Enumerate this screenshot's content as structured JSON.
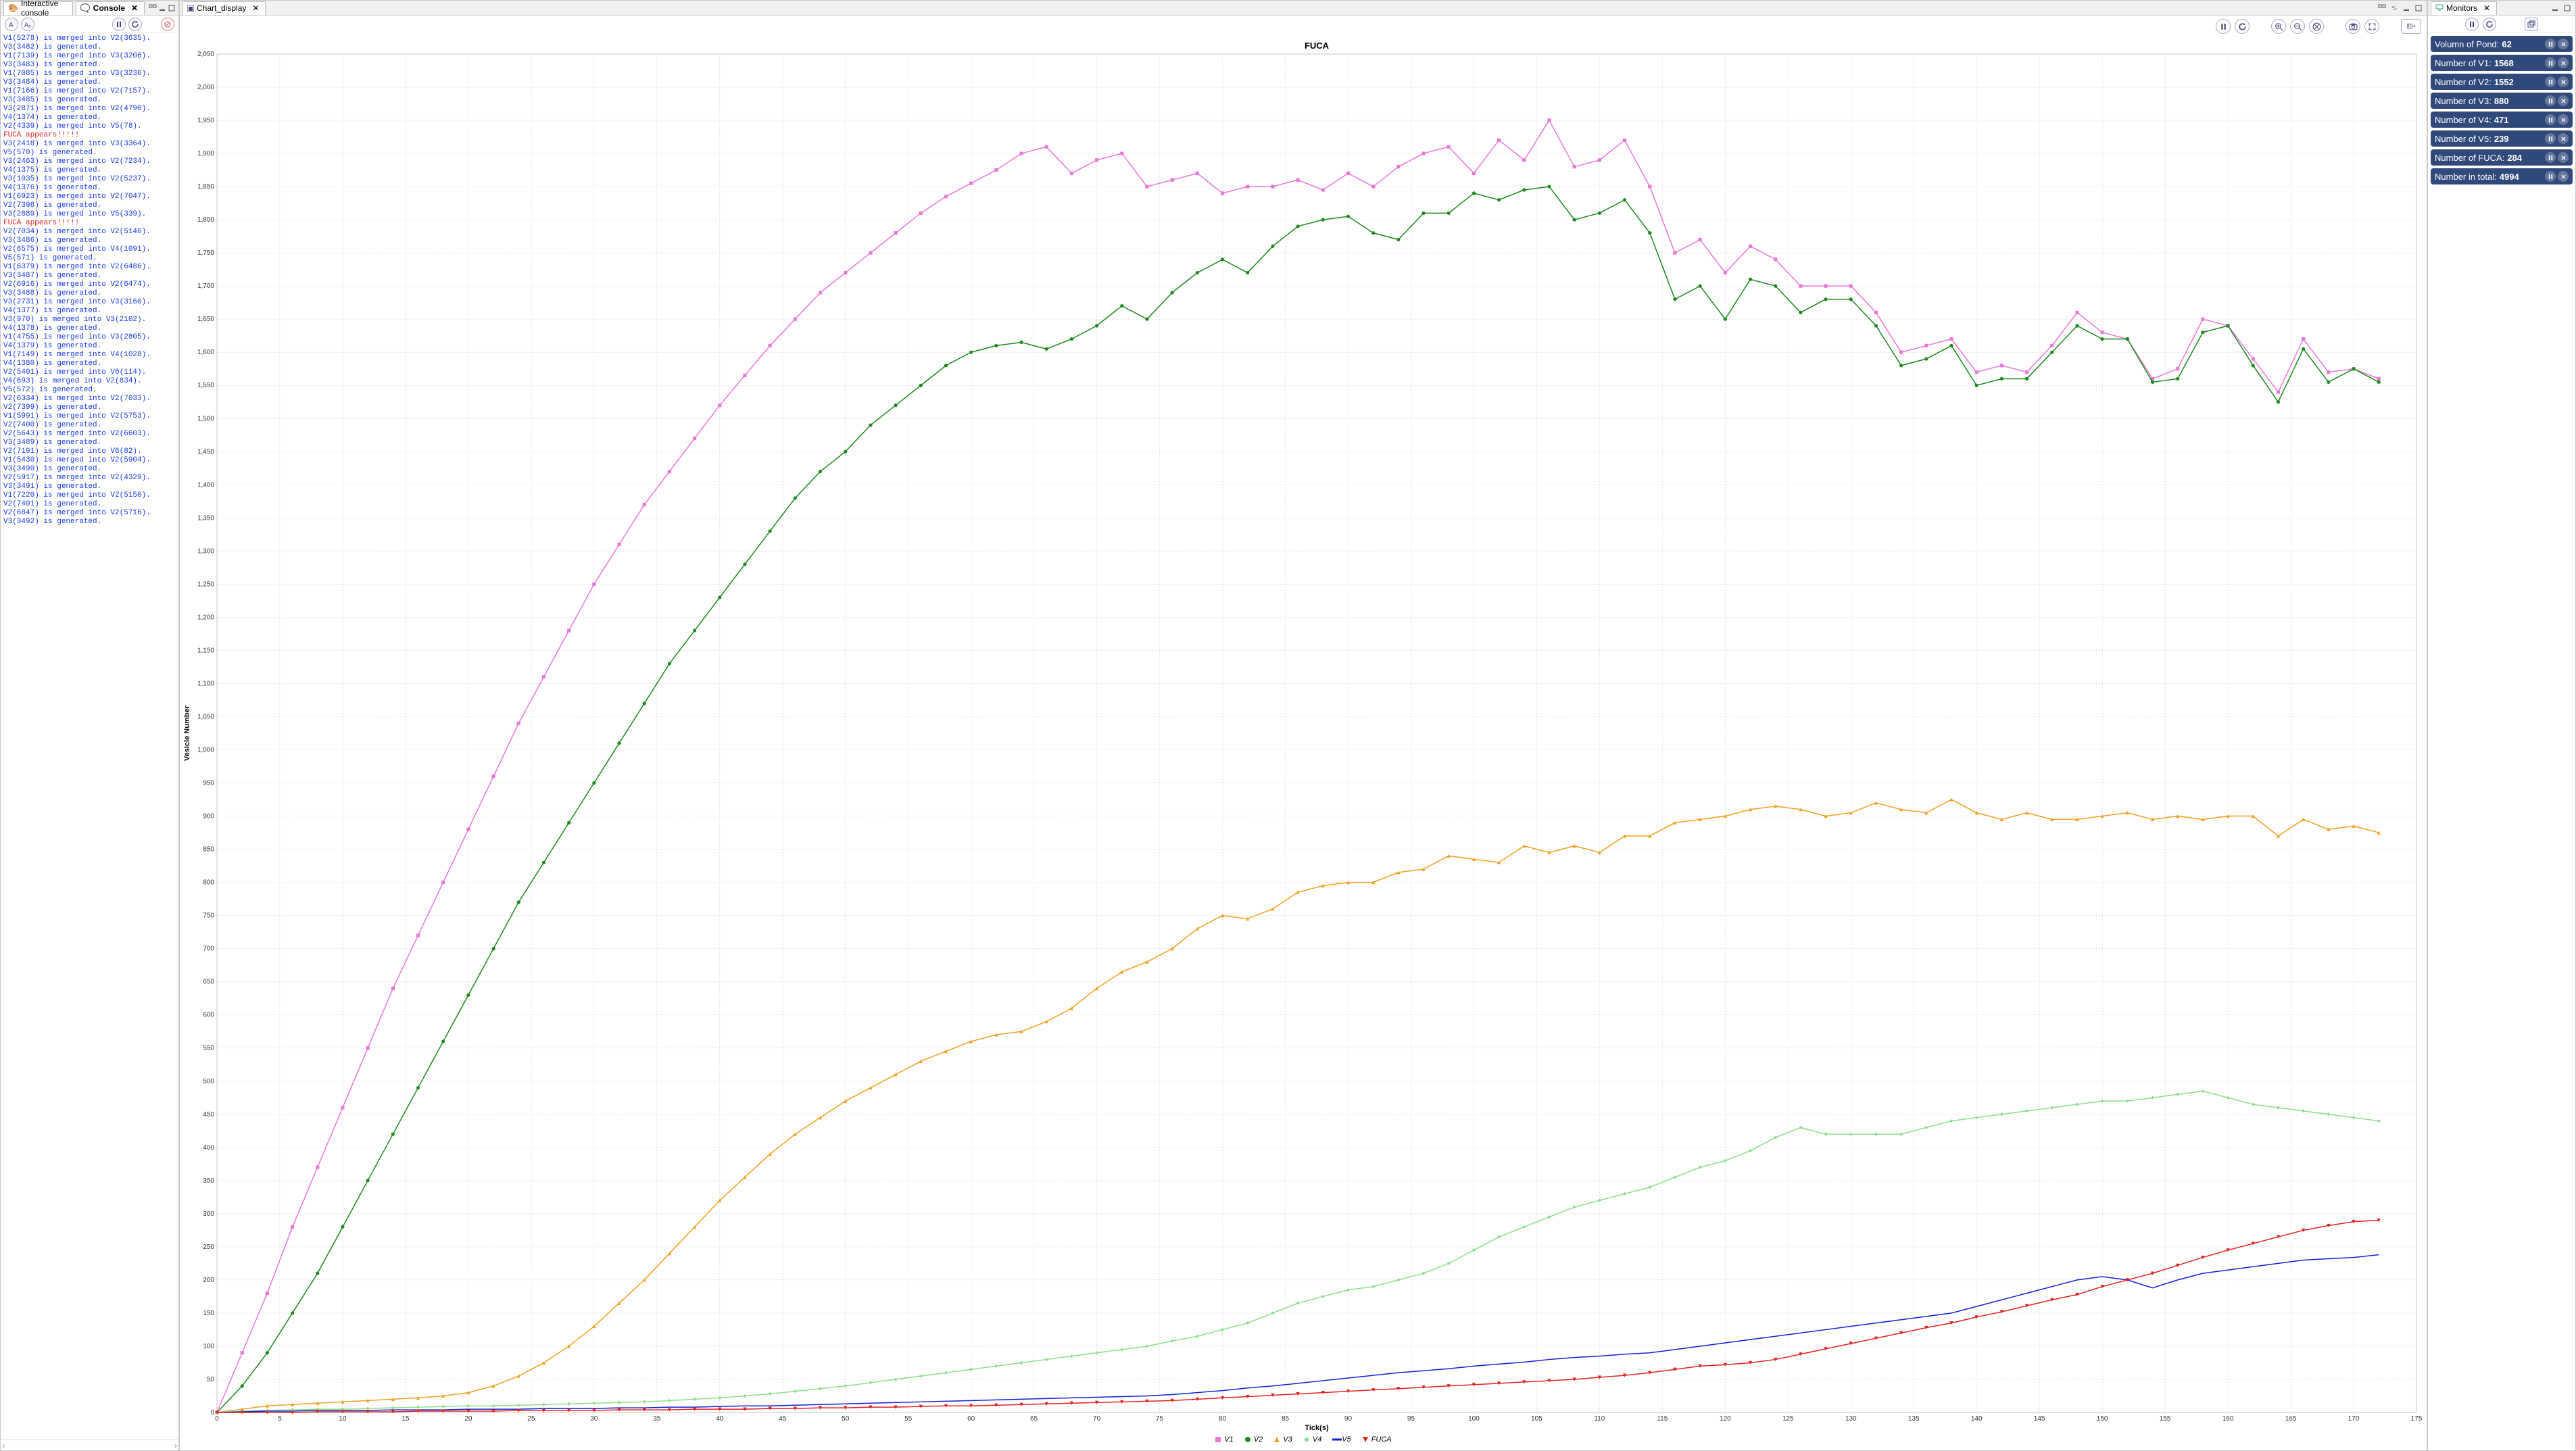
{
  "panels": {
    "console": {
      "tabs": [
        "Interactive console",
        "Console"
      ],
      "active_tab": 1,
      "log": [
        {
          "text": "V1(5278) is merged into V2(3635).",
          "alert": false
        },
        {
          "text": "V3(3482) is generated.",
          "alert": false
        },
        {
          "text": "V1(7139) is merged into V3(3206).",
          "alert": false
        },
        {
          "text": "V3(3483) is generated.",
          "alert": false
        },
        {
          "text": "V1(7085) is merged into V3(3236).",
          "alert": false
        },
        {
          "text": "V3(3484) is generated.",
          "alert": false
        },
        {
          "text": "V1(7166) is merged into V2(7157).",
          "alert": false
        },
        {
          "text": "V3(3485) is generated.",
          "alert": false
        },
        {
          "text": "V3(2871) is merged into V2(4790).",
          "alert": false
        },
        {
          "text": "V4(1374) is generated.",
          "alert": false
        },
        {
          "text": "V2(4339) is merged into V5(78).",
          "alert": false
        },
        {
          "text": "FUCA appears!!!!!",
          "alert": true
        },
        {
          "text": "V3(2418) is merged into V3(3364).",
          "alert": false
        },
        {
          "text": "V5(570) is generated.",
          "alert": false
        },
        {
          "text": "V3(2463) is merged into V2(7234).",
          "alert": false
        },
        {
          "text": "V4(1375) is generated.",
          "alert": false
        },
        {
          "text": "V3(1035) is merged into V2(5237).",
          "alert": false
        },
        {
          "text": "V4(1376) is generated.",
          "alert": false
        },
        {
          "text": "V1(6923) is merged into V2(7047).",
          "alert": false
        },
        {
          "text": "V2(7398) is generated.",
          "alert": false
        },
        {
          "text": "V3(2889) is merged into V5(339).",
          "alert": false
        },
        {
          "text": "FUCA appears!!!!!",
          "alert": true
        },
        {
          "text": "V2(7034) is merged into V2(5146).",
          "alert": false
        },
        {
          "text": "V3(3486) is generated.",
          "alert": false
        },
        {
          "text": "V2(6575) is merged into V4(1091).",
          "alert": false
        },
        {
          "text": "V5(571) is generated.",
          "alert": false
        },
        {
          "text": "V1(6379) is merged into V2(6486).",
          "alert": false
        },
        {
          "text": "V3(3487) is generated.",
          "alert": false
        },
        {
          "text": "V2(6916) is merged into V2(6474).",
          "alert": false
        },
        {
          "text": "V3(3488) is generated.",
          "alert": false
        },
        {
          "text": "V3(2731) is merged into V3(3160).",
          "alert": false
        },
        {
          "text": "V4(1377) is generated.",
          "alert": false
        },
        {
          "text": "V3(970) is merged into V3(2102).",
          "alert": false
        },
        {
          "text": "V4(1378) is generated.",
          "alert": false
        },
        {
          "text": "V1(4755) is merged into V3(2805).",
          "alert": false
        },
        {
          "text": "V4(1379) is generated.",
          "alert": false
        },
        {
          "text": "V1(7149) is merged into V4(1028).",
          "alert": false
        },
        {
          "text": "V4(1380) is generated.",
          "alert": false
        },
        {
          "text": "V2(5401) is merged into V6(114).",
          "alert": false
        },
        {
          "text": "V4(693) is merged into V2(834).",
          "alert": false
        },
        {
          "text": "V5(572) is generated.",
          "alert": false
        },
        {
          "text": "V2(6334) is merged into V2(7033).",
          "alert": false
        },
        {
          "text": "V2(7399) is generated.",
          "alert": false
        },
        {
          "text": "V1(5991) is merged into V2(5753).",
          "alert": false
        },
        {
          "text": "V2(7400) is generated.",
          "alert": false
        },
        {
          "text": "V2(5643) is merged into V2(6603).",
          "alert": false
        },
        {
          "text": "V3(3489) is generated.",
          "alert": false
        },
        {
          "text": "V2(7191) is merged into V6(82).",
          "alert": false
        },
        {
          "text": "V1(5430) is merged into V2(5904).",
          "alert": false
        },
        {
          "text": "V3(3490) is generated.",
          "alert": false
        },
        {
          "text": "V2(5917) is merged into V2(4329).",
          "alert": false
        },
        {
          "text": "V3(3491) is generated.",
          "alert": false
        },
        {
          "text": "V1(7220) is merged into V2(5150).",
          "alert": false
        },
        {
          "text": "V2(7401) is generated.",
          "alert": false
        },
        {
          "text": "V2(6847) is merged into V2(5716).",
          "alert": false
        },
        {
          "text": "V3(3492) is generated.",
          "alert": false
        }
      ]
    },
    "chart": {
      "tab": "Chart_display",
      "title": "FUCA",
      "xlabel": "Tick(s)",
      "ylabel": "Vesicle Number",
      "xlim": [
        0,
        175
      ],
      "ylim": [
        0,
        2050
      ],
      "xtick_step": 5,
      "ytick_step": 50,
      "grid_color": "#cccccc",
      "background_color": "#ffffff",
      "series": [
        {
          "name": "V1",
          "color": "#e878d8",
          "marker": "square",
          "data": [
            0,
            90,
            180,
            280,
            370,
            460,
            550,
            640,
            720,
            800,
            880,
            960,
            1040,
            1110,
            1180,
            1250,
            1310,
            1370,
            1420,
            1470,
            1520,
            1565,
            1610,
            1650,
            1690,
            1720,
            1750,
            1780,
            1810,
            1835,
            1855,
            1875,
            1900,
            1910,
            1870,
            1890,
            1900,
            1850,
            1860,
            1870,
            1840,
            1850,
            1850,
            1860,
            1845,
            1870,
            1850,
            1880,
            1900,
            1910,
            1870,
            1920,
            1890,
            1950,
            1880,
            1890,
            1920,
            1850,
            1750,
            1770,
            1720,
            1760,
            1740,
            1700,
            1700,
            1700,
            1660,
            1600,
            1610,
            1620,
            1570,
            1580,
            1570,
            1610,
            1660,
            1630,
            1620,
            1560,
            1575,
            1650,
            1640,
            1590,
            1540,
            1620,
            1570,
            1575,
            1560
          ]
        },
        {
          "name": "V2",
          "color": "#1a8a1a",
          "marker": "circle",
          "data": [
            0,
            40,
            90,
            150,
            210,
            280,
            350,
            420,
            490,
            560,
            630,
            700,
            770,
            830,
            890,
            950,
            1010,
            1070,
            1130,
            1180,
            1230,
            1280,
            1330,
            1380,
            1420,
            1450,
            1490,
            1520,
            1550,
            1580,
            1600,
            1610,
            1615,
            1605,
            1620,
            1640,
            1670,
            1650,
            1690,
            1720,
            1740,
            1720,
            1760,
            1790,
            1800,
            1805,
            1780,
            1770,
            1810,
            1810,
            1840,
            1830,
            1845,
            1850,
            1800,
            1810,
            1830,
            1780,
            1680,
            1700,
            1650,
            1710,
            1700,
            1660,
            1680,
            1680,
            1640,
            1580,
            1590,
            1610,
            1550,
            1560,
            1560,
            1600,
            1640,
            1620,
            1620,
            1555,
            1560,
            1630,
            1640,
            1580,
            1525,
            1605,
            1555,
            1575,
            1555
          ]
        },
        {
          "name": "V3",
          "color": "#f0a020",
          "marker": "triangle",
          "data": [
            0,
            5,
            10,
            12,
            14,
            16,
            18,
            20,
            22,
            25,
            30,
            40,
            55,
            75,
            100,
            130,
            165,
            200,
            240,
            280,
            320,
            355,
            390,
            420,
            445,
            470,
            490,
            510,
            530,
            545,
            560,
            570,
            575,
            590,
            610,
            640,
            665,
            680,
            700,
            730,
            750,
            745,
            760,
            785,
            795,
            800,
            800,
            815,
            820,
            840,
            835,
            830,
            855,
            845,
            855,
            845,
            870,
            870,
            890,
            895,
            900,
            910,
            915,
            910,
            900,
            905,
            920,
            910,
            905,
            925,
            905,
            895,
            905,
            895,
            895,
            900,
            905,
            895,
            900,
            895,
            900,
            900,
            870,
            895,
            880,
            885,
            875
          ]
        },
        {
          "name": "V4",
          "color": "#8ae08a",
          "marker": "diamond",
          "data": [
            0,
            2,
            3,
            4,
            5,
            5,
            6,
            7,
            8,
            9,
            10,
            10,
            11,
            12,
            13,
            14,
            15,
            16,
            18,
            20,
            22,
            25,
            28,
            32,
            36,
            40,
            45,
            50,
            55,
            60,
            65,
            70,
            75,
            80,
            85,
            90,
            95,
            100,
            108,
            115,
            125,
            135,
            150,
            165,
            175,
            185,
            190,
            200,
            210,
            225,
            245,
            265,
            280,
            295,
            310,
            320,
            330,
            340,
            355,
            370,
            380,
            395,
            415,
            430,
            420,
            420,
            420,
            420,
            430,
            440,
            445,
            450,
            455,
            460,
            465,
            470,
            470,
            475,
            480,
            485,
            475,
            465,
            460,
            455,
            450,
            445,
            440
          ]
        },
        {
          "name": "V5",
          "color": "#1020d0",
          "marker": "line",
          "data": [
            0,
            1,
            2,
            2,
            3,
            3,
            3,
            4,
            4,
            4,
            5,
            5,
            5,
            6,
            6,
            6,
            7,
            7,
            8,
            8,
            9,
            10,
            10,
            11,
            12,
            13,
            14,
            15,
            16,
            17,
            18,
            19,
            20,
            21,
            22,
            23,
            24,
            25,
            27,
            30,
            33,
            37,
            40,
            44,
            48,
            52,
            56,
            60,
            63,
            66,
            70,
            73,
            76,
            80,
            83,
            85,
            88,
            90,
            95,
            100,
            105,
            110,
            115,
            120,
            125,
            130,
            135,
            140,
            145,
            150,
            160,
            170,
            180,
            190,
            200,
            205,
            200,
            188,
            200,
            210,
            215,
            220,
            225,
            230,
            232,
            234,
            238
          ]
        },
        {
          "name": "FUCA",
          "color": "#e02020",
          "marker": "triangle-down",
          "data": [
            0,
            0,
            0,
            0,
            1,
            1,
            1,
            1,
            2,
            2,
            2,
            2,
            3,
            3,
            3,
            3,
            4,
            4,
            4,
            5,
            5,
            5,
            6,
            6,
            7,
            7,
            8,
            8,
            9,
            10,
            10,
            11,
            12,
            13,
            14,
            15,
            16,
            17,
            18,
            20,
            22,
            24,
            26,
            28,
            30,
            32,
            34,
            36,
            38,
            40,
            42,
            44,
            46,
            48,
            50,
            53,
            56,
            60,
            65,
            70,
            72,
            75,
            80,
            88,
            96,
            104,
            112,
            120,
            128,
            135,
            144,
            152,
            161,
            170,
            178,
            190,
            200,
            210,
            222,
            234,
            245,
            255,
            265,
            275,
            282,
            288,
            290
          ]
        }
      ],
      "x_values": [
        0,
        2,
        4,
        6,
        8,
        10,
        12,
        14,
        16,
        18,
        20,
        22,
        24,
        26,
        28,
        30,
        32,
        34,
        36,
        38,
        40,
        42,
        44,
        46,
        48,
        50,
        52,
        54,
        56,
        58,
        60,
        62,
        64,
        66,
        68,
        70,
        72,
        74,
        76,
        78,
        80,
        82,
        84,
        86,
        88,
        90,
        92,
        94,
        96,
        98,
        100,
        102,
        104,
        106,
        108,
        110,
        112,
        114,
        116,
        118,
        120,
        122,
        124,
        126,
        128,
        130,
        132,
        134,
        136,
        138,
        140,
        142,
        144,
        146,
        148,
        150,
        152,
        154,
        156,
        158,
        160,
        162,
        164,
        166,
        168,
        170,
        172
      ]
    },
    "monitors": {
      "tab": "Monitors",
      "items": [
        {
          "label": "Volumn of Pond:",
          "value": "62"
        },
        {
          "label": "Number of V1:",
          "value": "1568"
        },
        {
          "label": "Number of V2:",
          "value": "1552"
        },
        {
          "label": "Number of V3:",
          "value": "880"
        },
        {
          "label": "Number of V4:",
          "value": "471"
        },
        {
          "label": "Number of V5:",
          "value": "239"
        },
        {
          "label": "Number of FUCA:",
          "value": "284"
        },
        {
          "label": "Number in total:",
          "value": "4994"
        }
      ],
      "card_bg": "#2f4a7a"
    }
  }
}
